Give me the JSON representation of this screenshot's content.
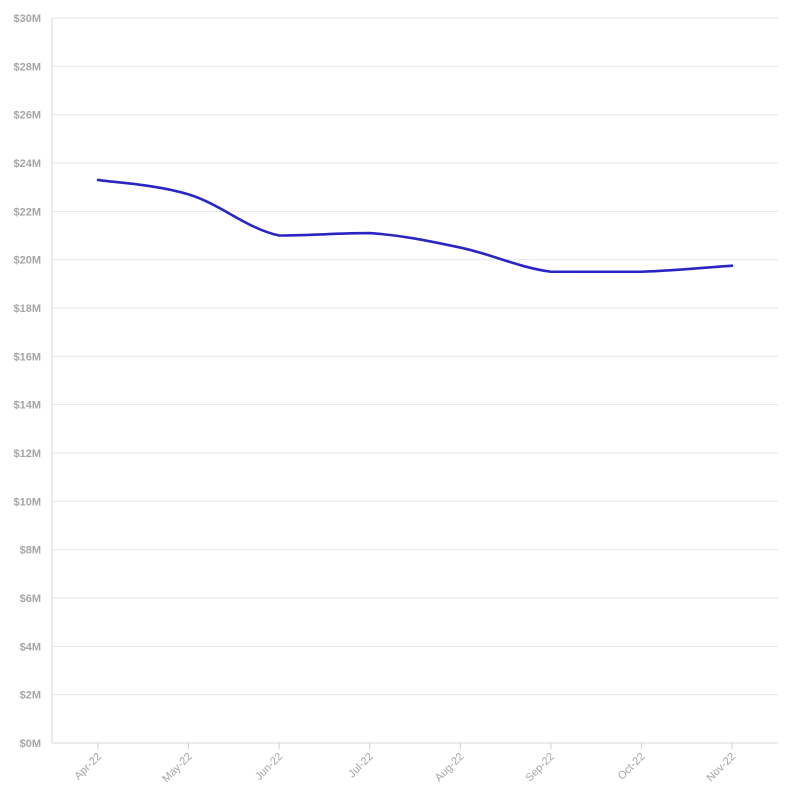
{
  "chart_data": {
    "type": "line",
    "title": "",
    "xlabel": "",
    "ylabel": "",
    "categories": [
      "Apr-22",
      "May-22",
      "Jun-22",
      "Jul-22",
      "Aug-22",
      "Sep-22",
      "Oct-22",
      "Nov-22"
    ],
    "series": [
      {
        "values": [
          23.3,
          22.7,
          21.0,
          21.1,
          20.5,
          19.5,
          19.5,
          19.75
        ],
        "color": "#2b25c4"
      }
    ],
    "ylim": [
      0,
      30
    ],
    "y_ticks": [
      0,
      2,
      4,
      6,
      8,
      10,
      12,
      14,
      16,
      18,
      20,
      22,
      24,
      26,
      28,
      30
    ],
    "y_tick_labels": [
      "$0M",
      "$2M",
      "$4M",
      "$6M",
      "$8M",
      "$10M",
      "$12M",
      "$14M",
      "$16M",
      "$18M",
      "$20M",
      "$22M",
      "$24M",
      "$26M",
      "$28M",
      "$30M"
    ],
    "grid": true,
    "legend": "none",
    "curve": "smooth"
  }
}
